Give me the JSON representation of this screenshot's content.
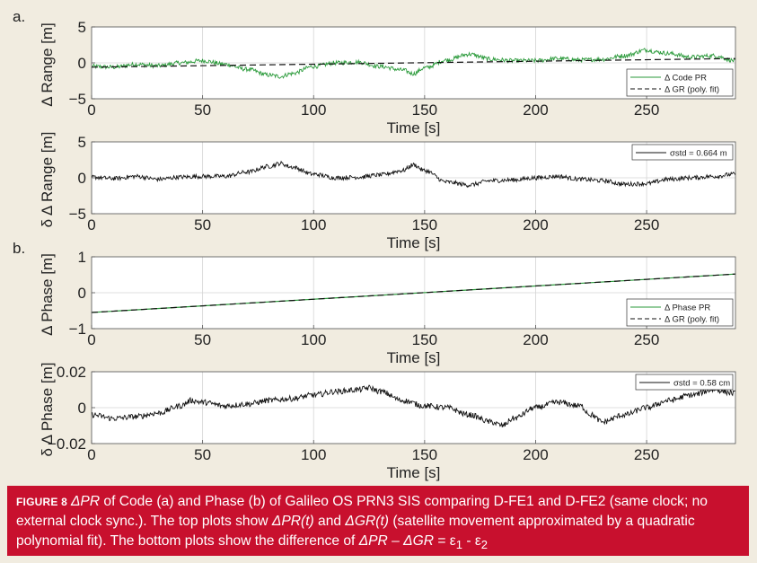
{
  "figure": {
    "panel_a_label": "a.",
    "panel_b_label": "b."
  },
  "caption": {
    "label": "FIGURE 8",
    "text_1": "ΔPR",
    "text_2": " of Code (a) and Phase (b) of Galileo OS PRN3 SIS comparing D-FE1 and D-FE2 (same clock; no external clock sync.). The top plots show ",
    "text_3": "ΔPR(t)",
    "text_4": " and ",
    "text_5": "ΔGR(t)",
    "text_6": " (satellite movement approximated by a quadratic polynomial fit). The bottom plots show the difference of ",
    "text_7": "ΔPR – ΔGR",
    "text_8": " = ε",
    "text_9": "1",
    "text_10": " - ε",
    "text_11": "2"
  },
  "colors": {
    "code_pr": "#2a9a3a",
    "phase_pr": "#2a9a3a",
    "residual": "#111111",
    "fit": "#111111",
    "caption_bg": "#c8102e",
    "page_bg": "#f1ece0"
  },
  "chart_data": [
    {
      "type": "line",
      "id": "code-range",
      "xlabel": "Time [s]",
      "ylabel": "Δ Range [m]",
      "xlim": [
        0,
        290
      ],
      "ylim": [
        -5,
        5
      ],
      "xticks": [
        0,
        50,
        100,
        150,
        200,
        250
      ],
      "yticks": [
        -5,
        0,
        5
      ],
      "grid": true,
      "legend_position": "bottom-right",
      "series": [
        {
          "name": "Δ Code PR",
          "style": "solid",
          "color": "#2a9a3a",
          "x": [
            0,
            10,
            20,
            30,
            40,
            50,
            60,
            70,
            80,
            85,
            90,
            100,
            110,
            120,
            130,
            140,
            145,
            150,
            160,
            170,
            180,
            190,
            200,
            210,
            220,
            230,
            240,
            250,
            255,
            260,
            270,
            280,
            290
          ],
          "y": [
            -0.5,
            -0.6,
            -0.2,
            -0.4,
            0.0,
            0.3,
            -0.2,
            -0.9,
            -1.7,
            -1.9,
            -1.5,
            -0.5,
            0.0,
            0.1,
            -0.5,
            -1.0,
            -1.5,
            -0.7,
            0.4,
            1.2,
            0.5,
            0.3,
            0.3,
            0.6,
            0.4,
            0.5,
            1.0,
            1.8,
            1.5,
            1.3,
            0.8,
            1.0,
            0.3
          ],
          "noise": 0.3
        },
        {
          "name": "Δ GR (poly. fit)",
          "style": "dashed",
          "color": "#111111",
          "x": [
            0,
            290
          ],
          "y": [
            -0.6,
            0.6
          ]
        }
      ]
    },
    {
      "type": "line",
      "id": "code-residual",
      "xlabel": "Time [s]",
      "ylabel": "δ Δ Range [m]",
      "xlim": [
        0,
        290
      ],
      "ylim": [
        -5,
        5
      ],
      "xticks": [
        0,
        50,
        100,
        150,
        200,
        250
      ],
      "yticks": [
        -5,
        0,
        5
      ],
      "grid": true,
      "legend_position": "top-right",
      "series": [
        {
          "name": "σstd = 0.664 m",
          "style": "solid",
          "color": "#111111",
          "x": [
            0,
            10,
            20,
            30,
            40,
            50,
            60,
            70,
            80,
            85,
            90,
            100,
            110,
            120,
            130,
            140,
            145,
            150,
            160,
            170,
            180,
            190,
            200,
            210,
            220,
            230,
            240,
            250,
            260,
            270,
            280,
            290
          ],
          "y": [
            0.1,
            -0.1,
            0.2,
            -0.2,
            0.1,
            0.2,
            0.2,
            0.8,
            1.6,
            2.0,
            1.5,
            0.5,
            0.0,
            0.1,
            0.4,
            1.0,
            1.8,
            1.0,
            -0.6,
            -1.0,
            -0.4,
            -0.3,
            0.0,
            0.2,
            -0.2,
            -0.4,
            -0.9,
            -0.8,
            -0.2,
            0.0,
            0.2,
            0.5
          ],
          "noise": 0.3
        }
      ]
    },
    {
      "type": "line",
      "id": "phase",
      "xlabel": "Time [s]",
      "ylabel": "Δ Phase [m]",
      "xlim": [
        0,
        290
      ],
      "ylim": [
        -1,
        1
      ],
      "xticks": [
        0,
        50,
        100,
        150,
        200,
        250
      ],
      "yticks": [
        -1,
        0,
        1
      ],
      "grid": true,
      "legend_position": "bottom-right",
      "series": [
        {
          "name": "Δ Phase PR",
          "style": "solid",
          "color": "#2a9a3a",
          "x": [
            0,
            290
          ],
          "y": [
            -0.55,
            0.52
          ]
        },
        {
          "name": "Δ GR (poly. fit)",
          "style": "dashed",
          "color": "#111111",
          "x": [
            0,
            290
          ],
          "y": [
            -0.55,
            0.52
          ]
        }
      ]
    },
    {
      "type": "line",
      "id": "phase-residual",
      "xlabel": "Time [s]",
      "ylabel": "δ Δ Phase [m]",
      "xlim": [
        0,
        290
      ],
      "ylim": [
        -0.02,
        0.02
      ],
      "xticks": [
        0,
        50,
        100,
        150,
        200,
        250
      ],
      "yticks": [
        -0.02,
        0,
        0.02
      ],
      "ytick_labels": [
        "−0.02",
        "0",
        "0.02"
      ],
      "grid": true,
      "legend_position": "top-right",
      "series": [
        {
          "name": "σstd = 0.58 cm",
          "style": "solid",
          "color": "#111111",
          "x": [
            0,
            10,
            20,
            30,
            40,
            45,
            50,
            60,
            70,
            80,
            90,
            100,
            110,
            120,
            125,
            130,
            140,
            150,
            160,
            170,
            180,
            185,
            190,
            200,
            210,
            220,
            225,
            230,
            240,
            250,
            260,
            270,
            280,
            290
          ],
          "y": [
            -0.004,
            -0.006,
            -0.005,
            -0.003,
            0.001,
            0.004,
            0.003,
            0.001,
            0.002,
            0.004,
            0.005,
            0.007,
            0.009,
            0.01,
            0.011,
            0.009,
            0.004,
            0.001,
            0.0,
            -0.004,
            -0.008,
            -0.01,
            -0.006,
            0.0,
            0.003,
            0.001,
            -0.004,
            -0.008,
            -0.004,
            0.0,
            0.004,
            0.007,
            0.01,
            0.008
          ],
          "noise": 0.0016
        }
      ]
    }
  ]
}
